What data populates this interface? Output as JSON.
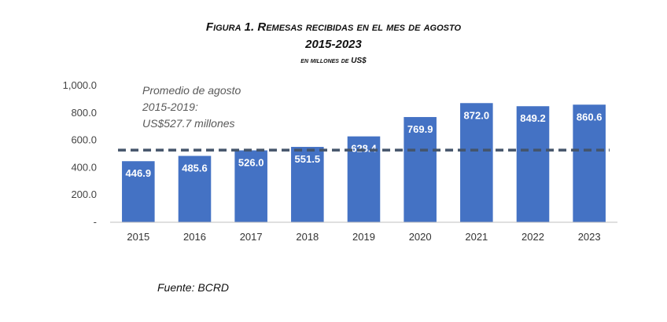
{
  "figure": {
    "title": "Figura 1. Remesas recibidas en el mes de agosto",
    "years": "2015-2023",
    "units": "en millones de US$",
    "source": "Fuente: BCRD"
  },
  "chart_data": {
    "type": "bar",
    "categories": [
      "2015",
      "2016",
      "2017",
      "2018",
      "2019",
      "2020",
      "2021",
      "2022",
      "2023"
    ],
    "values": [
      446.9,
      485.6,
      526.0,
      551.5,
      628.4,
      769.9,
      872.0,
      849.2,
      860.6
    ],
    "value_labels": [
      "446.9",
      "485.6",
      "526.0",
      "551.5",
      "628.4",
      "769.9",
      "872.0",
      "849.2",
      "860.6"
    ],
    "ylim": [
      0,
      1000
    ],
    "yticks": [
      0,
      200,
      400,
      600,
      800,
      1000
    ],
    "ytick_labels": [
      "-",
      "200.0",
      "400.0",
      "600.0",
      "800.0",
      "1,000.0"
    ],
    "bar_color": "#4472C4",
    "reference_line": {
      "value": 527.7,
      "color": "#44546A",
      "style": "dashed",
      "annotation": [
        "Promedio de agosto",
        "2015-2019:",
        "US$527.7 millones"
      ]
    },
    "grid": false
  }
}
